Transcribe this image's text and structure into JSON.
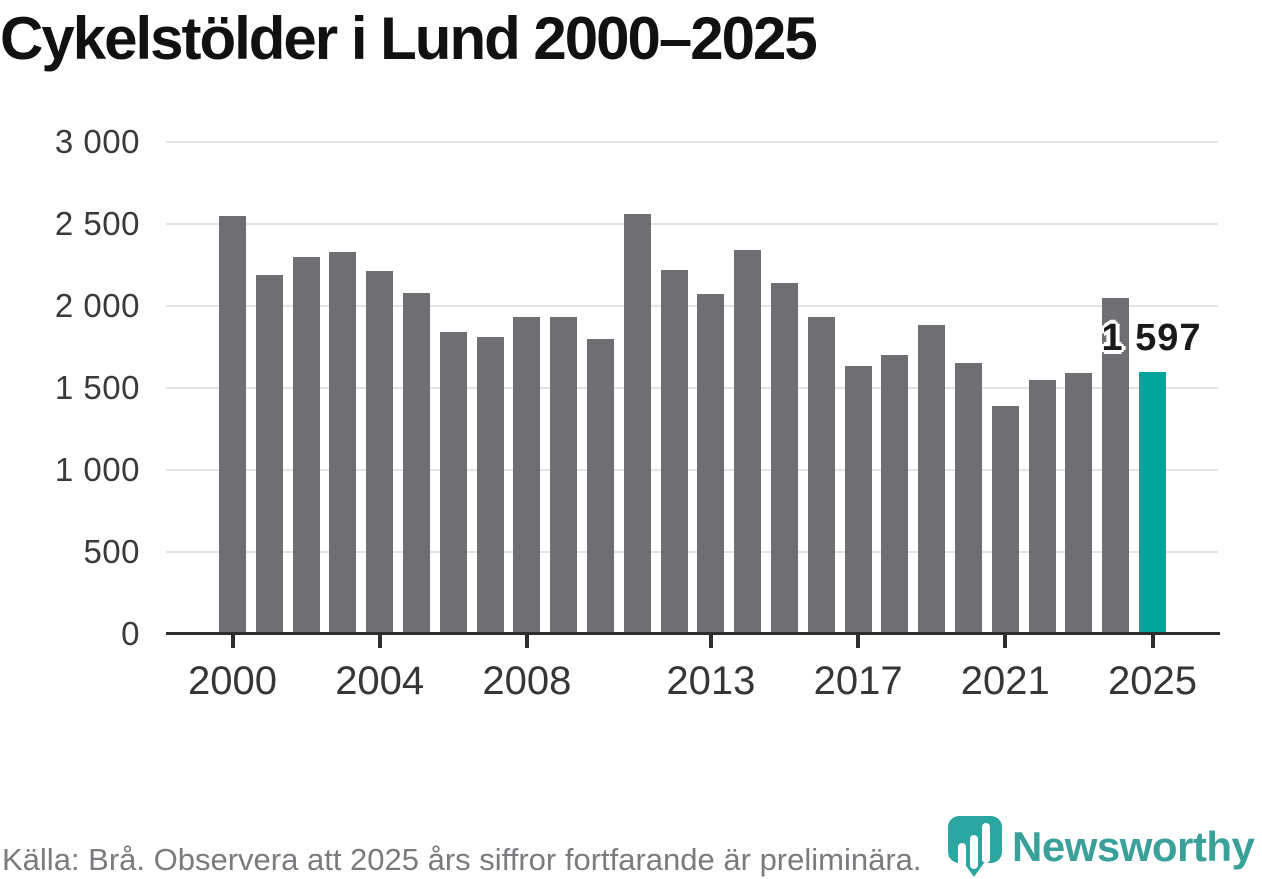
{
  "title": "Cykelstölder i Lund 2000–2025",
  "footer": {
    "source_text": "Källa: Brå. Observera att 2025 års siffror fortfarande är preliminära."
  },
  "branding": {
    "logo_text": "Newsworthy",
    "logo_color": "#3aa09a",
    "icon_color": "#2ba6a0"
  },
  "chart_data": {
    "type": "bar",
    "title": "Cykelstölder i Lund 2000–2025",
    "xlabel": "",
    "ylabel": "",
    "categories": [
      2000,
      2001,
      2002,
      2003,
      2004,
      2005,
      2006,
      2007,
      2008,
      2009,
      2010,
      2011,
      2012,
      2013,
      2014,
      2015,
      2016,
      2017,
      2018,
      2019,
      2020,
      2021,
      2022,
      2023,
      2024,
      2025
    ],
    "values": [
      2550,
      2190,
      2300,
      2330,
      2210,
      2080,
      1840,
      1810,
      1930,
      1930,
      1800,
      2560,
      2220,
      2070,
      2340,
      2140,
      1930,
      1630,
      1700,
      1880,
      1650,
      1390,
      1550,
      1590,
      2050,
      1597
    ],
    "ylim": [
      0,
      3000
    ],
    "yticks": [
      0,
      500,
      1000,
      1500,
      2000,
      2500,
      3000
    ],
    "ytick_labels": [
      "0",
      "500",
      "1 000",
      "1 500",
      "2 000",
      "2 500",
      "3 000"
    ],
    "xtick_years": [
      2000,
      2004,
      2008,
      2013,
      2017,
      2021,
      2025
    ],
    "grid": "horizontal",
    "legend": "none",
    "bar_color": "#6f6e73",
    "highlight_year": 2025,
    "highlight_color": "#00a49b",
    "annotation": {
      "year": 2025,
      "text": "1 597"
    }
  }
}
